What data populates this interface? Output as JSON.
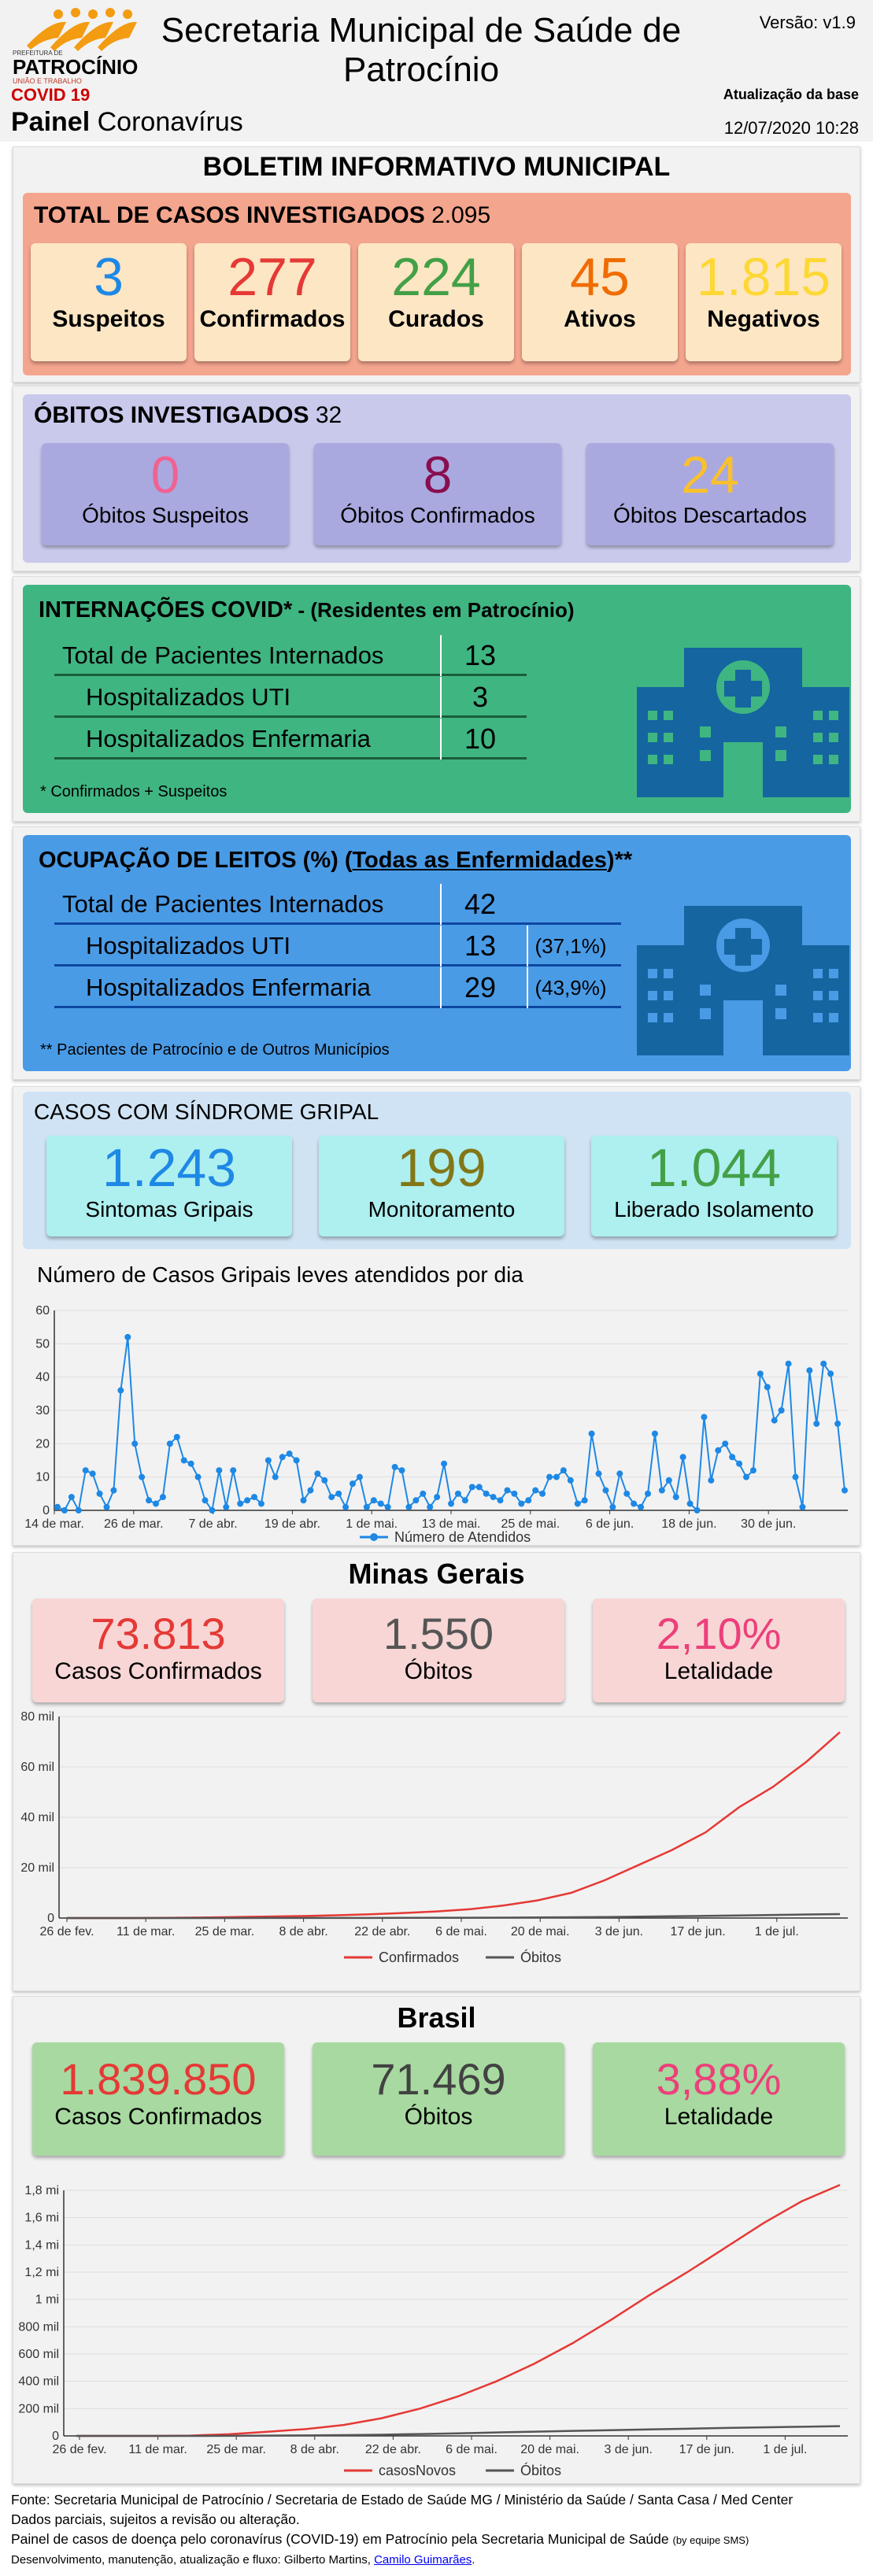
{
  "header": {
    "title": "Secretaria Municipal de Saúde de Patrocínio",
    "version": "Versão: v1.9",
    "covid": "COVID 19",
    "painel_bold": "Painel",
    "painel_rest": " Coronavírus",
    "update_label": "Atualização da base",
    "update_date": "12/07/2020 10:28",
    "logo_top": "PREFEITURA DE",
    "logo_name": "PATROCÍNIO",
    "logo_slogan": "UNIÃO E TRABALHO"
  },
  "boletim": {
    "title": "BOLETIM INFORMATIVO MUNICIPAL"
  },
  "casos": {
    "title": "TOTAL DE CASOS INVESTIGADOS",
    "total": "2.095",
    "items": [
      {
        "value": "3",
        "label": "Suspeitos",
        "color": "#1e88e5"
      },
      {
        "value": "277",
        "label": "Confirmados",
        "color": "#e53935"
      },
      {
        "value": "224",
        "label": "Curados",
        "color": "#43a047"
      },
      {
        "value": "45",
        "label": "Ativos",
        "color": "#ef6c00"
      },
      {
        "value": "1.815",
        "label": "Negativos",
        "color": "#fdd835"
      }
    ]
  },
  "obitos": {
    "title": "ÓBITOS INVESTIGADOS",
    "total": "32",
    "items": [
      {
        "value": "0",
        "label": "Óbitos Suspeitos",
        "color": "#f06292"
      },
      {
        "value": "8",
        "label": "Óbitos Confirmados",
        "color": "#880e4f"
      },
      {
        "value": "24",
        "label": "Óbitos Descartados",
        "color": "#fbc02d"
      }
    ]
  },
  "internacoes": {
    "title": "INTERNAÇÕES COVID*",
    "subtitle": " - (Residentes em Patrocínio)",
    "rows": [
      {
        "name": "Total de Pacientes Internados",
        "value": "13"
      },
      {
        "name": "Hospitalizados UTI",
        "value": "3"
      },
      {
        "name": "Hospitalizados Enfermaria",
        "value": "10"
      }
    ],
    "note": "* Confirmados + Suspeitos"
  },
  "ocupacao": {
    "title": "OCUPAÇÃO DE LEITOS (%)",
    "title_link": "Todas as Enfermidades",
    "title_end": "**",
    "rows": [
      {
        "name": "Total de Pacientes Internados",
        "value": "42",
        "pct": ""
      },
      {
        "name": "Hospitalizados UTI",
        "value": "13",
        "pct": "(37,1%)"
      },
      {
        "name": "Hospitalizados Enfermaria",
        "value": "29",
        "pct": "(43,9%)"
      }
    ],
    "note": "** Pacientes de Patrocínio e de Outros Municípios"
  },
  "gripal": {
    "title": "CASOS COM SÍNDROME GRIPAL",
    "items": [
      {
        "value": "1.243",
        "label": "Sintomas Gripais",
        "color": "#1e88e5"
      },
      {
        "value": "199",
        "label": "Monitoramento",
        "color": "#827717"
      },
      {
        "value": "1.044",
        "label": "Liberado Isolamento",
        "color": "#43a047"
      }
    ]
  },
  "minas": {
    "title": "Minas Gerais",
    "items": [
      {
        "value": "73.813",
        "label": "Casos Confirmados",
        "color": "#e53935"
      },
      {
        "value": "1.550",
        "label": "Óbitos",
        "color": "#555555"
      },
      {
        "value": "2,10%",
        "label": "Letalidade",
        "color": "#ec407a"
      }
    ]
  },
  "brasil": {
    "title": "Brasil",
    "items": [
      {
        "value": "1.839.850",
        "label": "Casos Confirmados",
        "color": "#e53935"
      },
      {
        "value": "71.469",
        "label": "Óbitos",
        "color": "#424242"
      },
      {
        "value": "3,88%",
        "label": "Letalidade",
        "color": "#ec407a"
      }
    ]
  },
  "footer": {
    "line1": "Fonte: Secretaria Municipal de Patrocínio / Secretaria de Estado de Saúde MG / Ministério da Saúde / Santa Casa / Med Center",
    "line2": "Dados parciais, sujeitos a revisão ou alteração.",
    "line3": "Painel de casos de doença pelo coronavírus (COVID-19) em Patrocínio pela Secretaria Municipal de Saúde",
    "line3_small": "(by equipe SMS)",
    "line4": "Desenvolvimento, manutenção, atualização e fluxo: Gilberto Martins, ",
    "line4_link": "Camilo Guimarães",
    "line4_end": "."
  },
  "chart_data": [
    {
      "type": "line",
      "title": "Número de Casos Gripais leves atendidos por dia",
      "x_ticks": [
        "14 de mar.",
        "26 de mar.",
        "7 de abr.",
        "19 de abr.",
        "1 de mai.",
        "13 de mai.",
        "25 de mai.",
        "6 de jun.",
        "18 de jun.",
        "30 de jun."
      ],
      "ylim": [
        0,
        60
      ],
      "y_ticks": [
        "0",
        "10",
        "20",
        "30",
        "40",
        "50",
        "60"
      ],
      "series": [
        {
          "name": "Número de Atendidos",
          "color": "#1e88e5",
          "values": [
            1,
            0,
            4,
            0,
            12,
            11,
            5,
            1,
            6,
            36,
            52,
            20,
            10,
            3,
            2,
            4,
            20,
            22,
            15,
            14,
            10,
            3,
            0,
            12,
            1,
            12,
            2,
            3,
            4,
            2,
            15,
            10,
            16,
            17,
            15,
            3,
            6,
            11,
            9,
            4,
            5,
            1,
            8,
            10,
            1,
            3,
            2,
            1,
            13,
            12,
            1,
            3,
            5,
            1,
            4,
            14,
            2,
            5,
            3,
            7,
            7,
            5,
            4,
            3,
            6,
            5,
            2,
            3,
            6,
            5,
            10,
            10,
            12,
            9,
            2,
            3,
            23,
            11,
            6,
            1,
            11,
            5,
            2,
            1,
            5,
            23,
            6,
            9,
            4,
            16,
            2,
            0,
            28,
            9,
            18,
            20,
            16,
            14,
            10,
            12,
            41,
            37,
            27,
            30,
            44,
            10,
            1,
            42,
            26,
            44,
            41,
            26,
            6
          ]
        }
      ]
    },
    {
      "type": "line",
      "x_ticks": [
        "26 de fev.",
        "11 de mar.",
        "25 de mar.",
        "8 de abr.",
        "22 de abr.",
        "6 de mai.",
        "20 de mai.",
        "3 de jun.",
        "17 de jun.",
        "1 de jul."
      ],
      "ylim": [
        0,
        80000
      ],
      "y_ticks": [
        "0",
        "20 mil",
        "40 mil",
        "60 mil",
        "80 mil"
      ],
      "series": [
        {
          "name": "Confirmados",
          "color": "#e53935",
          "values": [
            0,
            1,
            10,
            60,
            200,
            400,
            600,
            800,
            1100,
            1500,
            2000,
            2600,
            3500,
            5000,
            7000,
            10000,
            15000,
            21000,
            27000,
            34000,
            44000,
            52000,
            62000,
            73813
          ]
        },
        {
          "name": "Óbitos",
          "color": "#555555",
          "values": [
            0,
            0,
            0,
            1,
            5,
            10,
            20,
            30,
            40,
            55,
            75,
            100,
            130,
            170,
            230,
            300,
            400,
            550,
            700,
            850,
            1000,
            1200,
            1400,
            1550
          ]
        }
      ]
    },
    {
      "type": "line",
      "x_ticks": [
        "26 de fev.",
        "11 de mar.",
        "25 de mar.",
        "8 de abr.",
        "22 de abr.",
        "6 de mai.",
        "20 de mai.",
        "3 de jun.",
        "17 de jun.",
        "1 de jul."
      ],
      "ylim": [
        0,
        1800000
      ],
      "y_ticks": [
        "0",
        "200 mil",
        "400 mil",
        "600 mil",
        "800 mil",
        "1 mi",
        "1,2 mi",
        "1,4 mi",
        "1,6 mi",
        "1,8 mi"
      ],
      "series": [
        {
          "name": "casosNovos",
          "color": "#e53935",
          "values": [
            0,
            1,
            50,
            2500,
            12000,
            30000,
            50000,
            80000,
            130000,
            200000,
            290000,
            400000,
            530000,
            680000,
            850000,
            1030000,
            1200000,
            1380000,
            1560000,
            1720000,
            1839850
          ]
        },
        {
          "name": "Óbitos",
          "color": "#555555",
          "values": [
            0,
            0,
            0,
            100,
            600,
            2100,
            3700,
            5500,
            8800,
            13900,
            18900,
            25100,
            31300,
            36500,
            41800,
            47900,
            52600,
            58400,
            63000,
            67000,
            71469
          ]
        }
      ]
    }
  ]
}
